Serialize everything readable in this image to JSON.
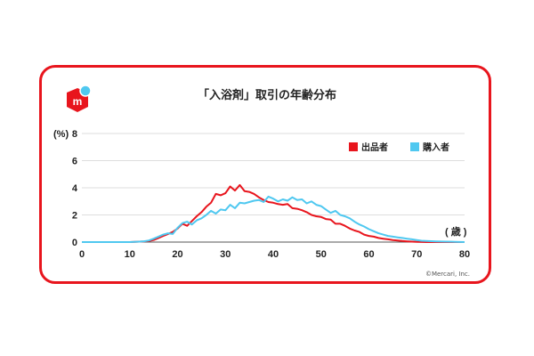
{
  "chart_data": {
    "type": "line",
    "title": "「入浴剤」取引の年齢分布",
    "ylabel": "(%)",
    "xlabel": "( 歳 )",
    "xlim": [
      0,
      80
    ],
    "ylim": [
      0,
      8
    ],
    "xticks": [
      0,
      10,
      20,
      30,
      40,
      50,
      60,
      70,
      80
    ],
    "yticks": [
      0,
      2,
      4,
      6,
      8
    ],
    "grid": true,
    "legend_position": "top-right",
    "series": [
      {
        "name": "出品者",
        "color": "#e8151d",
        "x": [
          0,
          5,
          10,
          13,
          14,
          15,
          16,
          17,
          18,
          19,
          20,
          21,
          22,
          23,
          24,
          25,
          26,
          27,
          28,
          29,
          30,
          31,
          32,
          33,
          34,
          35,
          36,
          37,
          38,
          39,
          40,
          41,
          42,
          43,
          44,
          45,
          46,
          47,
          48,
          49,
          50,
          51,
          52,
          53,
          54,
          55,
          56,
          57,
          58,
          59,
          60,
          61,
          62,
          63,
          64,
          65,
          66,
          67,
          68,
          69,
          70,
          72,
          75,
          80
        ],
        "values": [
          0,
          0,
          0,
          0.05,
          0.08,
          0.15,
          0.3,
          0.45,
          0.6,
          0.75,
          1.0,
          1.35,
          1.2,
          1.55,
          1.9,
          2.2,
          2.6,
          2.9,
          3.55,
          3.45,
          3.6,
          4.1,
          3.8,
          4.2,
          3.75,
          3.7,
          3.55,
          3.3,
          3.1,
          2.95,
          2.9,
          2.8,
          2.75,
          2.8,
          2.5,
          2.45,
          2.35,
          2.2,
          2.0,
          1.9,
          1.85,
          1.7,
          1.65,
          1.35,
          1.35,
          1.2,
          1.0,
          0.85,
          0.75,
          0.55,
          0.45,
          0.4,
          0.3,
          0.25,
          0.2,
          0.15,
          0.12,
          0.08,
          0.05,
          0.03,
          0.02,
          0,
          0,
          0
        ]
      },
      {
        "name": "購入者",
        "color": "#4fc8f0",
        "x": [
          0,
          5,
          10,
          12,
          13,
          14,
          15,
          16,
          17,
          18,
          19,
          20,
          21,
          22,
          23,
          24,
          25,
          26,
          27,
          28,
          29,
          30,
          31,
          32,
          33,
          34,
          35,
          36,
          37,
          38,
          39,
          40,
          41,
          42,
          43,
          44,
          45,
          46,
          47,
          48,
          49,
          50,
          51,
          52,
          53,
          54,
          55,
          56,
          57,
          58,
          59,
          60,
          61,
          62,
          63,
          64,
          65,
          66,
          67,
          68,
          69,
          70,
          71,
          72,
          74,
          76,
          78,
          80
        ],
        "values": [
          0,
          0,
          0,
          0.03,
          0.06,
          0.12,
          0.25,
          0.4,
          0.55,
          0.65,
          0.6,
          1.05,
          1.4,
          1.5,
          1.3,
          1.6,
          1.75,
          2.0,
          2.3,
          2.1,
          2.4,
          2.35,
          2.75,
          2.5,
          2.9,
          2.85,
          2.95,
          3.05,
          3.1,
          2.95,
          3.35,
          3.2,
          3.0,
          3.15,
          3.05,
          3.3,
          3.1,
          3.15,
          2.85,
          3.0,
          2.75,
          2.65,
          2.4,
          2.15,
          2.3,
          2.0,
          1.9,
          1.75,
          1.5,
          1.3,
          1.15,
          0.95,
          0.8,
          0.65,
          0.55,
          0.45,
          0.4,
          0.35,
          0.3,
          0.25,
          0.2,
          0.15,
          0.1,
          0.08,
          0.05,
          0.03,
          0.02,
          0
        ]
      }
    ],
    "copyright": "©Mercari, Inc."
  }
}
